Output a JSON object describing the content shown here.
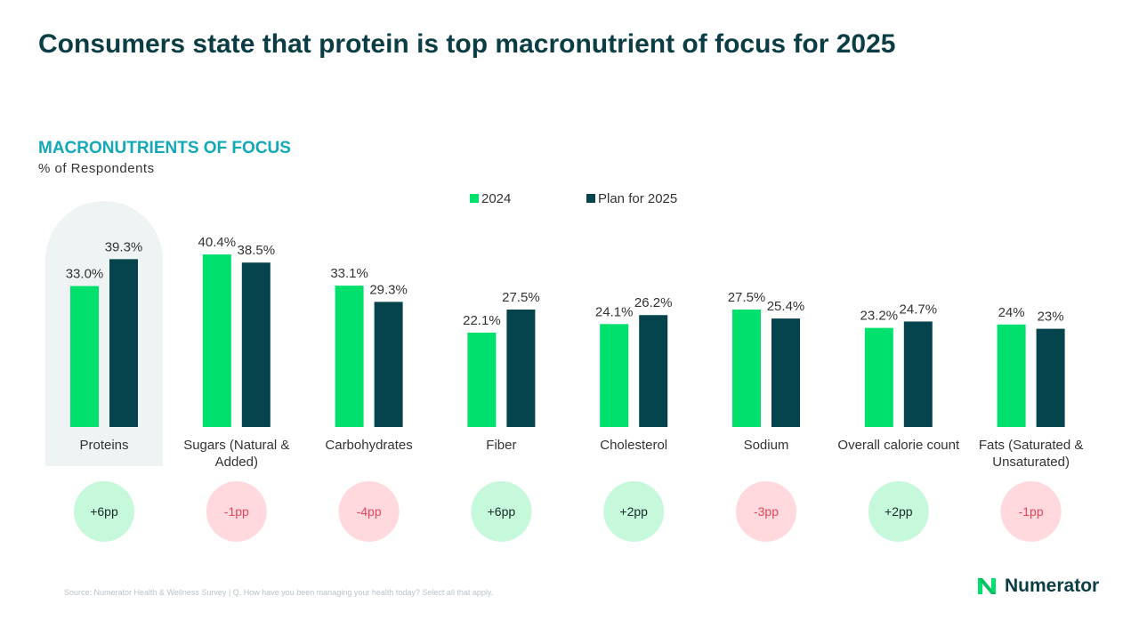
{
  "page": {
    "title": "Consumers state that protein is top macronutrient of focus for 2025",
    "source": "Source: Numerator Health & Wellness Survey | Q. How have you been managing your health today? Select all that apply.",
    "logo_text": "Numerator"
  },
  "colors": {
    "series_2024": "#00e06c",
    "series_2025": "#06444d",
    "highlight_bg": "#eef3f3",
    "pos_bg": "#c6f8dc",
    "pos_text": "#1b2a2a",
    "neg_bg": "#ffd9de",
    "neg_text": "#e2465c",
    "title": "#0b3d45",
    "subtitle": "#13a8b8"
  },
  "chart_data": {
    "type": "bar",
    "title": "MACRONUTRIENTS OF FOCUS",
    "ylabel": "% of Respondents",
    "categories": [
      "Proteins",
      "Sugars (Natural & Added)",
      "Carbohydrates",
      "Fiber",
      "Cholesterol",
      "Sodium",
      "Overall calorie count",
      "Fats (Saturated & Unsaturated)"
    ],
    "category_lines": [
      [
        "Proteins"
      ],
      [
        "Sugars (Natural &",
        "Added)"
      ],
      [
        "Carbohydrates"
      ],
      [
        "Fiber"
      ],
      [
        "Cholesterol"
      ],
      [
        "Sodium"
      ],
      [
        "Overall calorie count"
      ],
      [
        "Fats (Saturated &",
        "Unsaturated)"
      ]
    ],
    "series": [
      {
        "name": "2024",
        "values": [
          33.0,
          40.4,
          33.1,
          22.1,
          24.1,
          27.5,
          23.2,
          24
        ],
        "labels": [
          "33.0%",
          "40.4%",
          "33.1%",
          "22.1%",
          "24.1%",
          "27.5%",
          "23.2%",
          "24%"
        ]
      },
      {
        "name": "Plan for 2025",
        "values": [
          39.3,
          38.5,
          29.3,
          27.5,
          26.2,
          25.4,
          24.7,
          23
        ],
        "labels": [
          "39.3%",
          "38.5%",
          "29.3%",
          "27.5%",
          "26.2%",
          "25.4%",
          "24.7%",
          "23%"
        ]
      }
    ],
    "changes": [
      "+6pp",
      "-1pp",
      "-4pp",
      "+6pp",
      "+2pp",
      "-3pp",
      "+2pp",
      "-1pp"
    ],
    "change_sign": [
      "positive",
      "negative",
      "negative",
      "positive",
      "positive",
      "negative",
      "positive",
      "negative"
    ],
    "highlight_category": "Proteins",
    "legend_position": "top",
    "grid": false,
    "ylim": [
      0,
      45
    ]
  }
}
